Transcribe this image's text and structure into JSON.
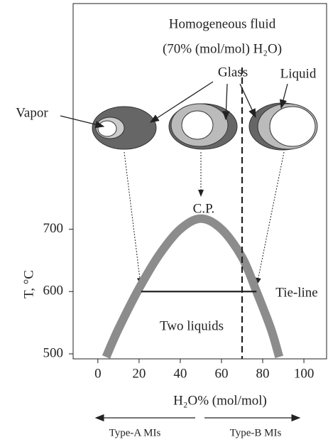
{
  "chart_data": {
    "type": "line",
    "title": "Homogeneous fluid",
    "subtitle": "(70% (mol/mol) H₂O)",
    "xlabel": "H₂O% (mol/mol)",
    "ylabel": "T, °C",
    "x": [
      4,
      10,
      20,
      30,
      40,
      50,
      60,
      70,
      77,
      84,
      88
    ],
    "values": [
      495,
      540,
      605,
      660,
      700,
      717,
      700,
      655,
      600,
      540,
      495
    ],
    "color": "#8c8c8c",
    "xlim": [
      -12,
      111
    ],
    "ylim": [
      492,
      1062
    ],
    "xticks": [
      0,
      20,
      40,
      60,
      80,
      100
    ],
    "yticks": [
      500,
      600,
      700
    ],
    "tie_line": {
      "label": "Tie-line",
      "x": [
        21,
        77
      ],
      "y": 600
    },
    "homogenization_line": {
      "x": 70
    },
    "critical_point_label": "C.P.",
    "region_label": "Two liquids",
    "phase_labels": [
      "Vapor",
      "Glass",
      "Liquid"
    ],
    "direction_labels": [
      "Type-A MIs",
      "Type-B MIs"
    ]
  }
}
